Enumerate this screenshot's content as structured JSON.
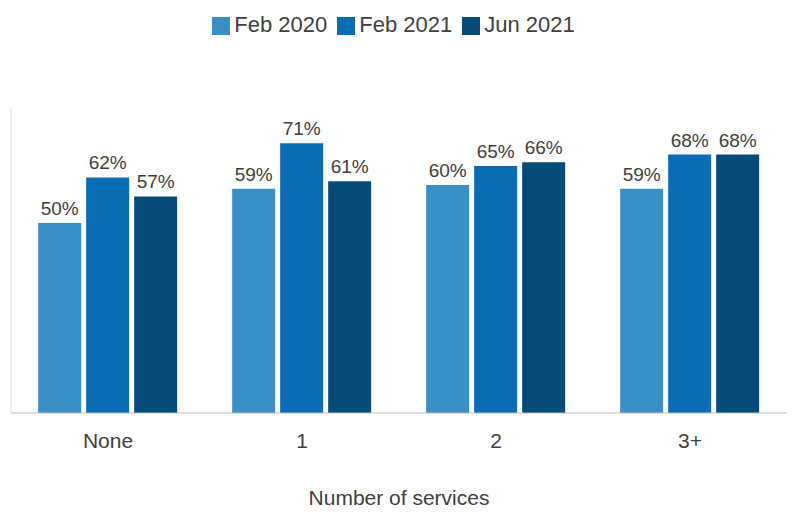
{
  "chart_data": {
    "type": "bar",
    "x_label": "Number of services",
    "categories": [
      "None",
      "1",
      "2",
      "3+"
    ],
    "series": [
      {
        "name": "Feb 2020",
        "color": "#3a90c4",
        "values": [
          50,
          59,
          60,
          59
        ],
        "value_labels": [
          "50%",
          "59%",
          "60%",
          "59%"
        ]
      },
      {
        "name": "Feb 2021",
        "color": "#0a6db3",
        "values": [
          62,
          71,
          65,
          68
        ],
        "value_labels": [
          "62%",
          "71%",
          "65%",
          "68%"
        ]
      },
      {
        "name": "Jun 2021",
        "color": "#064b78",
        "values": [
          57,
          61,
          66,
          68
        ],
        "value_labels": [
          "57%",
          "61%",
          "66%",
          "68%"
        ]
      }
    ],
    "ylim": [
      0,
      80
    ],
    "grid": false,
    "legend": "top",
    "data_labels": true,
    "tick_labels": "x"
  }
}
